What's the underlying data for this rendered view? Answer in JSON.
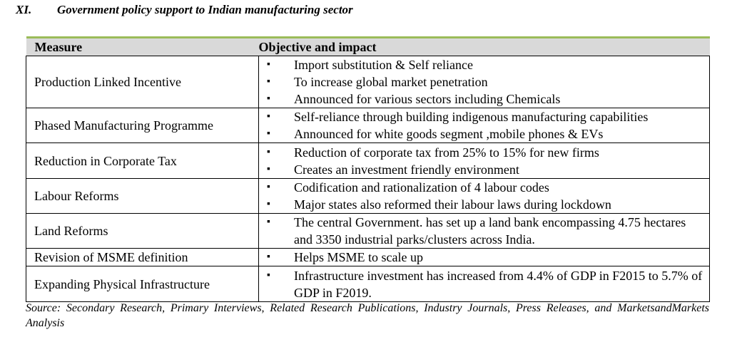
{
  "header": {
    "number": "XI.",
    "title": "Government policy support to Indian manufacturing sector"
  },
  "table": {
    "columns": [
      "Measure",
      "Objective and impact"
    ],
    "rows": [
      {
        "measure": "Production Linked Incentive",
        "points": [
          "Import substitution & Self reliance",
          "To increase global market penetration",
          "Announced for various sectors including Chemicals"
        ]
      },
      {
        "measure": "Phased Manufacturing Programme",
        "points": [
          "Self-reliance through building indigenous manufacturing capabilities",
          "Announced for white goods segment ,mobile phones & EVs"
        ]
      },
      {
        "measure": "Reduction in Corporate Tax",
        "points": [
          "Reduction of corporate tax from 25% to 15% for new firms",
          "Creates an investment friendly environment"
        ]
      },
      {
        "measure": "Labour Reforms",
        "points": [
          "Codification and rationalization of 4 labour codes",
          "Major states also reformed their labour laws during lockdown"
        ]
      },
      {
        "measure": "Land Reforms",
        "points": [
          "The central Government. has set up a land bank encompassing 4.75 hectares and 3350 industrial parks/clusters across India."
        ]
      },
      {
        "measure": "Revision of MSME definition",
        "points": [
          "Helps MSME to scale up"
        ]
      },
      {
        "measure": "Expanding Physical Infrastructure",
        "points": [
          "Infrastructure investment has increased from 4.4% of GDP in F2015 to 5.7% of GDP in F2019."
        ]
      }
    ]
  },
  "source": "Source: Secondary Research, Primary Interviews, Related Research Publications, Industry Journals, Press Releases, and MarketsandMarkets Analysis"
}
